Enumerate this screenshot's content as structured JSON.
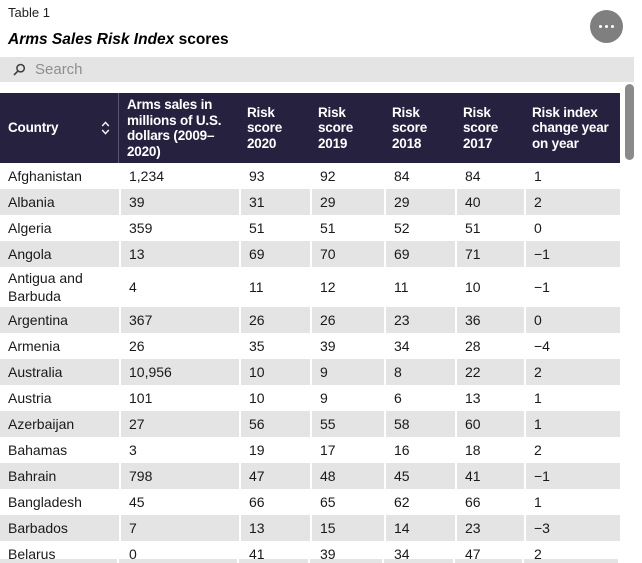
{
  "header": {
    "eyebrow": "Table 1",
    "title_italic": "Arms Sales Risk Index",
    "title_rest": " scores",
    "menu_icon": "ellipsis-icon"
  },
  "search": {
    "placeholder": "Search",
    "icon": "search-icon"
  },
  "table": {
    "columns": [
      {
        "label": "Country",
        "sortable": true
      },
      {
        "label": "Arms sales in millions of U.S. dollars (2009–2020)"
      },
      {
        "label": "Risk score 2020"
      },
      {
        "label": "Risk score 2019"
      },
      {
        "label": "Risk score 2018"
      },
      {
        "label": "Risk score 2017"
      },
      {
        "label": "Risk index change year on year"
      }
    ],
    "rows": [
      [
        "Afghanistan",
        "1,234",
        "93",
        "92",
        "84",
        "84",
        "1"
      ],
      [
        "Albania",
        "39",
        "31",
        "29",
        "29",
        "40",
        "2"
      ],
      [
        "Algeria",
        "359",
        "51",
        "51",
        "52",
        "51",
        "0"
      ],
      [
        "Angola",
        "13",
        "69",
        "70",
        "69",
        "71",
        "−1"
      ],
      [
        "Antigua and Barbuda",
        "4",
        "11",
        "12",
        "11",
        "10",
        "−1"
      ],
      [
        "Argentina",
        "367",
        "26",
        "26",
        "23",
        "36",
        "0"
      ],
      [
        "Armenia",
        "26",
        "35",
        "39",
        "34",
        "28",
        "−4"
      ],
      [
        "Australia",
        "10,956",
        "10",
        "9",
        "8",
        "22",
        "2"
      ],
      [
        "Austria",
        "101",
        "10",
        "9",
        "6",
        "13",
        "1"
      ],
      [
        "Azerbaijan",
        "27",
        "56",
        "55",
        "58",
        "60",
        "1"
      ],
      [
        "Bahamas",
        "3",
        "19",
        "17",
        "16",
        "18",
        "2"
      ],
      [
        "Bahrain",
        "798",
        "47",
        "48",
        "45",
        "41",
        "−1"
      ],
      [
        "Bangladesh",
        "45",
        "66",
        "65",
        "62",
        "66",
        "1"
      ],
      [
        "Barbados",
        "7",
        "13",
        "15",
        "14",
        "23",
        "−3"
      ],
      [
        "Belarus",
        "0",
        "41",
        "39",
        "34",
        "47",
        "2"
      ]
    ]
  },
  "colors": {
    "header_background": "#272140",
    "header_text": "#ffffff",
    "row_stripe": "#e4e4e4",
    "search_background": "#e4e4e4",
    "menu_button": "#7f7f7f",
    "scrollbar": "#8a8a8a"
  }
}
